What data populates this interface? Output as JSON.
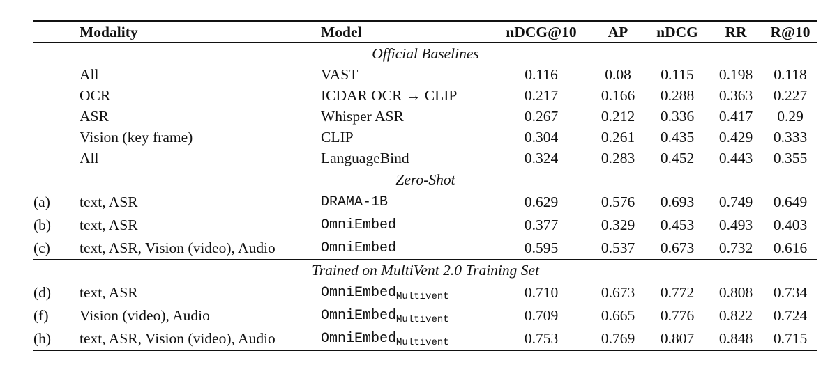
{
  "table": {
    "headers": [
      "",
      "Modality",
      "Model",
      "nDCG@10",
      "AP",
      "nDCG",
      "RR",
      "R@10"
    ],
    "groups": [
      {
        "title": "Official Baselines",
        "rows": [
          {
            "tag": "",
            "modality": "All",
            "model": "VAST",
            "model_sub": "",
            "monospace": false,
            "metrics": [
              "0.116",
              "0.08",
              "0.115",
              "0.198",
              "0.118"
            ]
          },
          {
            "tag": "",
            "modality": "OCR",
            "model": "ICDAR OCR → CLIP",
            "model_sub": "",
            "monospace": false,
            "metrics": [
              "0.217",
              "0.166",
              "0.288",
              "0.363",
              "0.227"
            ]
          },
          {
            "tag": "",
            "modality": "ASR",
            "model": "Whisper ASR",
            "model_sub": "",
            "monospace": false,
            "metrics": [
              "0.267",
              "0.212",
              "0.336",
              "0.417",
              "0.29"
            ]
          },
          {
            "tag": "",
            "modality": "Vision (key frame)",
            "model": "CLIP",
            "model_sub": "",
            "monospace": false,
            "metrics": [
              "0.304",
              "0.261",
              "0.435",
              "0.429",
              "0.333"
            ]
          },
          {
            "tag": "",
            "modality": "All",
            "model": "LanguageBind",
            "model_sub": "",
            "monospace": false,
            "metrics": [
              "0.324",
              "0.283",
              "0.452",
              "0.443",
              "0.355"
            ]
          }
        ]
      },
      {
        "title": "Zero-Shot",
        "rows": [
          {
            "tag": "(a)",
            "modality": "text, ASR",
            "model": "DRAMA-1B",
            "model_sub": "",
            "monospace": true,
            "metrics": [
              "0.629",
              "0.576",
              "0.693",
              "0.749",
              "0.649"
            ]
          },
          {
            "tag": "(b)",
            "modality": "text, ASR",
            "model": "OmniEmbed",
            "model_sub": "",
            "monospace": true,
            "metrics": [
              "0.377",
              "0.329",
              "0.453",
              "0.493",
              "0.403"
            ]
          },
          {
            "tag": "(c)",
            "modality": "text, ASR, Vision (video), Audio",
            "model": "OmniEmbed",
            "model_sub": "",
            "monospace": true,
            "metrics": [
              "0.595",
              "0.537",
              "0.673",
              "0.732",
              "0.616"
            ]
          }
        ]
      },
      {
        "title": "Trained on MultiVent 2.0 Training Set",
        "rows": [
          {
            "tag": "(d)",
            "modality": "text, ASR",
            "model": "OmniEmbed",
            "model_sub": "Multivent",
            "monospace": true,
            "metrics": [
              "0.710",
              "0.673",
              "0.772",
              "0.808",
              "0.734"
            ]
          },
          {
            "tag": "(f)",
            "modality": "Vision (video), Audio",
            "model": "OmniEmbed",
            "model_sub": "Multivent",
            "monospace": true,
            "metrics": [
              "0.709",
              "0.665",
              "0.776",
              "0.822",
              "0.724"
            ]
          },
          {
            "tag": "(h)",
            "modality": "text, ASR, Vision (video), Audio",
            "model": "OmniEmbed",
            "model_sub": "Multivent",
            "monospace": true,
            "metrics": [
              "0.753",
              "0.769",
              "0.807",
              "0.848",
              "0.715"
            ]
          }
        ]
      }
    ]
  }
}
